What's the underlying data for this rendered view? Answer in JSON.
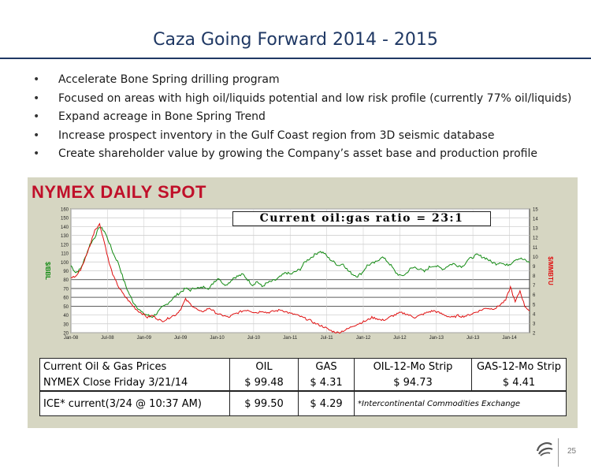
{
  "slide": {
    "title": "Caza Going Forward 2014 - 2015",
    "bullets": [
      "Accelerate Bone Spring drilling program",
      "Focused on areas with high oil/liquids potential and low risk profile (currently 77% oil/liquids)",
      "Expand acreage in Bone Spring Trend",
      "Increase prospect inventory in the Gulf Coast region from 3D seismic database",
      "Create shareholder value by growing the Company’s asset base and production profile"
    ],
    "bullet_glyph": "•",
    "page_number": "25"
  },
  "chart_data": {
    "type": "line",
    "title": "NYMEX DAILY SPOT",
    "annotation": "Current oil:gas ratio = 23:1",
    "ylabel_left": "$/BBL",
    "ylabel_right": "$/MMBTU",
    "ylim_left": [
      20,
      160
    ],
    "ylim_right": [
      2,
      15
    ],
    "yticks_left": [
      20,
      30,
      40,
      50,
      60,
      70,
      80,
      90,
      100,
      110,
      120,
      130,
      140,
      150,
      160
    ],
    "yticks_right": [
      2,
      3,
      4,
      5,
      6,
      7,
      8,
      9,
      10,
      11,
      12,
      13,
      14,
      15
    ],
    "xticks": [
      "Jan-08",
      "Jul-08",
      "Jan-09",
      "Jul-09",
      "Jan-10",
      "Jul-10",
      "Jan-11",
      "Jul-11",
      "Jan-12",
      "Jul-12",
      "Jan-13",
      "Jul-13",
      "Jan-14"
    ],
    "colors": {
      "oil": "#128a12",
      "gas": "#e01010"
    },
    "series": [
      {
        "key": "oil",
        "axis": "left",
        "values": [
          96,
          88,
          92,
          105,
          120,
          128,
          140,
          135,
          122,
          108,
          98,
          80,
          66,
          55,
          48,
          42,
          40,
          38,
          42,
          48,
          52,
          57,
          62,
          66,
          70,
          68,
          71,
          70,
          72,
          70,
          78,
          82,
          74,
          76,
          82,
          84,
          86,
          80,
          74,
          78,
          72,
          76,
          78,
          80,
          84,
          88,
          86,
          89,
          92,
          100,
          104,
          108,
          112,
          110,
          104,
          100,
          96,
          98,
          90,
          86,
          84,
          88,
          96,
          98,
          100,
          106,
          102,
          96,
          88,
          84,
          86,
          92,
          94,
          92,
          89,
          94,
          96,
          94,
          92,
          96,
          98,
          96,
          95,
          102,
          105,
          108,
          106,
          104,
          100,
          98,
          100,
          96,
          98,
          103,
          104,
          102,
          99
        ]
      },
      {
        "key": "gas",
        "axis": "right",
        "values": [
          7.8,
          7.9,
          8.6,
          9.8,
          11.2,
          12.8,
          13.4,
          11.5,
          9.3,
          7.8,
          6.8,
          6.0,
          5.4,
          4.8,
          4.3,
          4.0,
          3.6,
          3.8,
          3.5,
          3.2,
          3.4,
          3.7,
          3.9,
          4.5,
          5.5,
          5.0,
          4.6,
          4.2,
          4.3,
          4.6,
          4.2,
          3.9,
          3.8,
          3.6,
          3.9,
          4.1,
          4.3,
          4.4,
          4.2,
          4.1,
          4.3,
          4.1,
          4.2,
          4.3,
          4.4,
          4.2,
          4.0,
          3.9,
          3.7,
          3.5,
          3.3,
          3.0,
          2.8,
          2.6,
          2.3,
          2.1,
          2.0,
          2.2,
          2.4,
          2.7,
          2.9,
          3.1,
          3.3,
          3.6,
          3.5,
          3.3,
          3.4,
          3.7,
          3.9,
          4.1,
          4.0,
          3.8,
          3.6,
          3.8,
          4.0,
          4.2,
          4.3,
          4.1,
          3.9,
          3.7,
          3.6,
          3.8,
          3.7,
          3.8,
          4.0,
          4.2,
          4.4,
          4.6,
          4.5,
          4.6,
          5.0,
          5.4,
          6.8,
          5.2,
          6.4,
          4.8,
          4.3
        ]
      }
    ]
  },
  "price_table": {
    "headers": [
      "Current Oil & Gas Prices",
      "OIL",
      "GAS",
      "OIL-12-Mo Strip",
      "GAS-12-Mo Strip"
    ],
    "rows": [
      {
        "label": "NYMEX Close Friday 3/21/14",
        "oil": "$ 99.48",
        "gas": "$ 4.31",
        "oil_strip": "$ 94.73",
        "gas_strip": "$ 4.41"
      },
      {
        "label": "ICE* current(3/24 @ 10:37 AM)",
        "oil": "$ 99.50",
        "gas": "$ 4.29",
        "note": "*Intercontinental Commodities Exchange"
      }
    ]
  }
}
